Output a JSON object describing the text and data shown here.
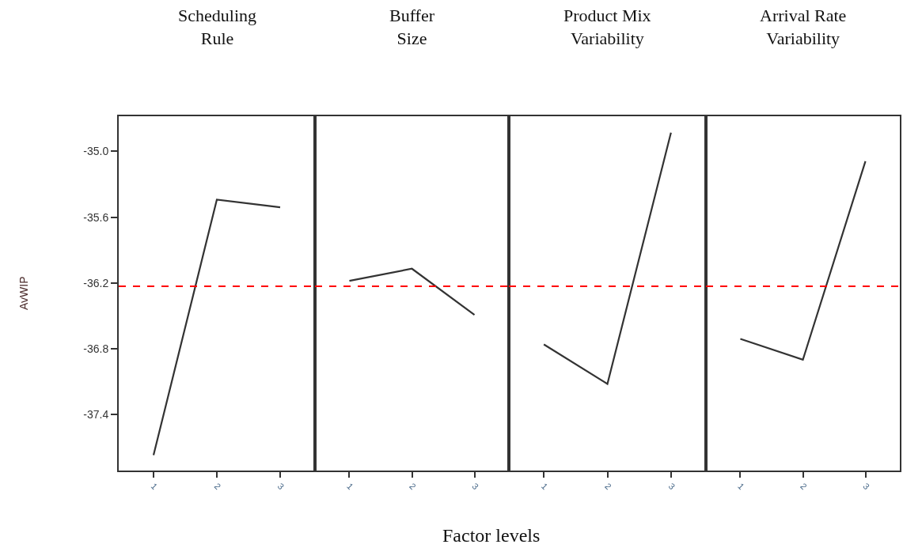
{
  "chart_data": [
    {
      "type": "line",
      "title": "Scheduling\nRule",
      "ylabel": "AvWIP",
      "categories": [
        "1",
        "2",
        "3"
      ],
      "values": [
        -37.77,
        -35.44,
        -35.51
      ],
      "color": "#333333",
      "ylim": [
        -37.91,
        -34.68
      ],
      "yticks": [
        {
          "value": -35.0,
          "label": "-35.0"
        },
        -35.6,
        -36.2,
        -36.8,
        -37.4
      ],
      "ref_lines": [
        {
          "axis": "y",
          "value": -36.23,
          "color": "#ff0000",
          "line_style": "dashed"
        }
      ],
      "grid": false,
      "marker": "none",
      "line_style": "solid"
    },
    {
      "type": "line",
      "title": "Buffer\nSize",
      "xlabel": "Factor levels",
      "categories": [
        "1",
        "2",
        "3"
      ],
      "values": [
        -36.18,
        -36.07,
        -36.49
      ],
      "color": "#333333",
      "ylim": [
        -37.91,
        -34.68
      ],
      "yticks": [
        -35.0,
        -35.6,
        -36.2,
        -36.8,
        -37.4
      ],
      "tick_labels": "x",
      "ref_lines": [
        {
          "axis": "y",
          "value": -36.23,
          "color": "#ff0000",
          "line_style": "dashed"
        }
      ],
      "grid": false,
      "marker": "none",
      "line_style": "solid"
    },
    {
      "type": "line",
      "title": "Product Mix\nVariability",
      "categories": [
        "1",
        "2",
        "3"
      ],
      "values": [
        -36.76,
        -37.12,
        -34.83
      ],
      "color": "#333333",
      "ylim": [
        -37.91,
        -34.68
      ],
      "yticks": [
        -35.0,
        -35.6,
        -36.2,
        -36.8,
        -37.4
      ],
      "tick_labels": "x",
      "ref_lines": [
        {
          "axis": "y",
          "value": -36.23,
          "color": "#ff0000",
          "line_style": "dashed"
        }
      ],
      "grid": false,
      "marker": "none",
      "line_style": "solid"
    },
    {
      "type": "line",
      "title": "Arrival Rate\nVariability",
      "categories": [
        "1",
        "2",
        "3"
      ],
      "values": [
        -36.71,
        -36.9,
        -35.09
      ],
      "color": "#333333",
      "ylim": [
        -37.91,
        -34.68
      ],
      "yticks": [
        -35.0,
        -35.6,
        -36.2,
        -36.8,
        -37.4
      ],
      "tick_labels": "x",
      "ref_lines": [
        {
          "axis": "y",
          "value": -36.23,
          "color": "#ff0000",
          "line_style": "dashed"
        }
      ],
      "grid": false,
      "marker": "none",
      "line_style": "solid"
    }
  ]
}
